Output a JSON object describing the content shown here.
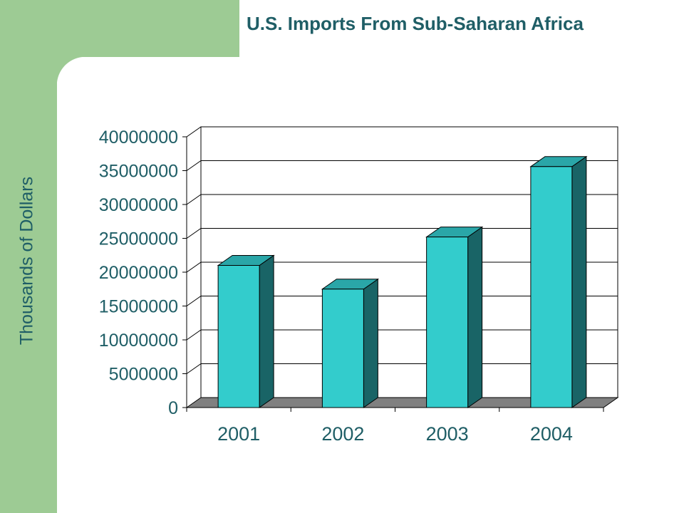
{
  "title": "U.S. Imports From Sub-Saharan Africa",
  "colors": {
    "accent_strip": "#9DCB94",
    "text": "#1F5E66",
    "bar_front": "#33CCCC",
    "bar_side": "#196466",
    "bar_top": "#2AA6A8",
    "floor": "#808080"
  },
  "chart_data": {
    "type": "bar",
    "title": "U.S. Imports From Sub-Saharan Africa",
    "xlabel": "",
    "ylabel": "Thousands of Dollars",
    "categories": [
      "2001",
      "2002",
      "2003",
      "2004"
    ],
    "values": [
      21000000,
      17500000,
      25200000,
      35600000
    ],
    "ylim": [
      0,
      40000000
    ],
    "yticks": [
      "0",
      "5000000",
      "10000000",
      "15000000",
      "20000000",
      "25000000",
      "30000000",
      "35000000",
      "40000000"
    ],
    "grid": true,
    "legend": "none",
    "style": "3d"
  }
}
